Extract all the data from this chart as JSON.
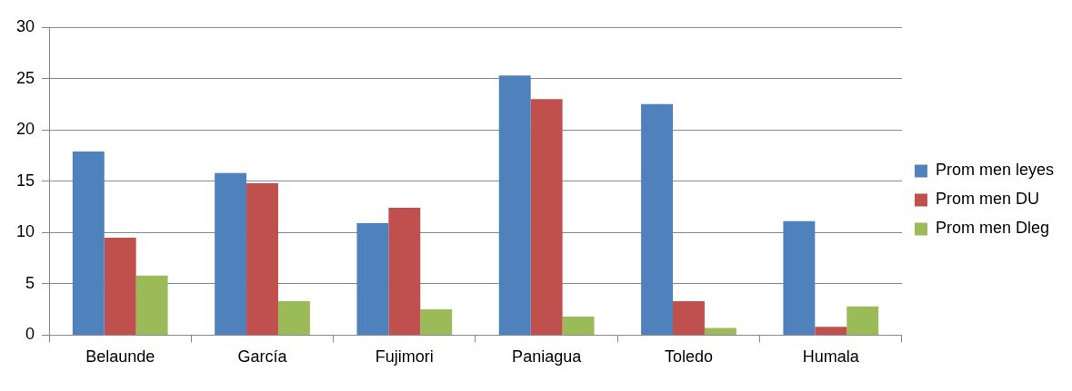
{
  "chart_data": {
    "type": "bar",
    "categories": [
      "Belaunde",
      "García",
      "Fujimori",
      "Paniagua",
      "Toledo",
      "Humala"
    ],
    "series": [
      {
        "name": "Prom men leyes",
        "color": "#4f81bd",
        "values": [
          17.9,
          15.8,
          10.9,
          25.3,
          22.5,
          11.1
        ]
      },
      {
        "name": "Prom men DU",
        "color": "#c0504d",
        "values": [
          9.5,
          14.8,
          12.4,
          23.0,
          3.3,
          0.8
        ]
      },
      {
        "name": "Prom men Dleg",
        "color": "#9bbb59",
        "values": [
          5.8,
          3.3,
          2.5,
          1.8,
          0.7,
          2.8
        ]
      }
    ],
    "ylim": [
      0,
      30
    ],
    "yticks": [
      0,
      5,
      10,
      15,
      20,
      25,
      30
    ],
    "grid": "y",
    "legend": "right"
  }
}
